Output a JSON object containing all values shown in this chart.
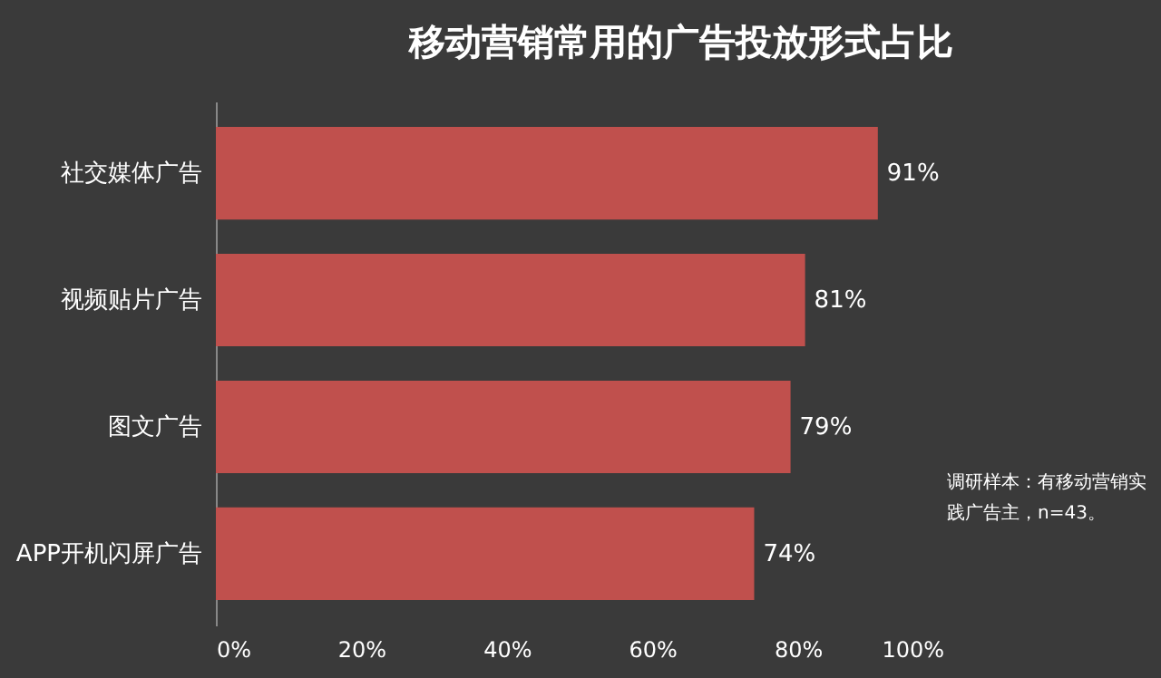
{
  "chart_data": {
    "type": "bar",
    "orientation": "horizontal",
    "title": "移动营销常用的广告投放形式占比",
    "categories": [
      "社交媒体广告",
      "视频贴片广告",
      "图文广告",
      "APP开机闪屏广告"
    ],
    "values": [
      91,
      81,
      79,
      74
    ],
    "color": "#c0504d",
    "value_labels": [
      "91%",
      "81%",
      "79%",
      "74%"
    ],
    "xlim": [
      0,
      100
    ],
    "xticks": [
      {
        "value": 0,
        "label": "0%"
      },
      {
        "value": 20,
        "label": "20%"
      },
      {
        "value": 40,
        "label": "40%"
      },
      {
        "value": 60,
        "label": "60%"
      },
      {
        "value": 80,
        "label": "80%"
      },
      {
        "value": 100,
        "label": "100%"
      }
    ],
    "grid": false,
    "annotations": [
      "调研样本：有移动营销实践广告主，n=43。"
    ]
  }
}
